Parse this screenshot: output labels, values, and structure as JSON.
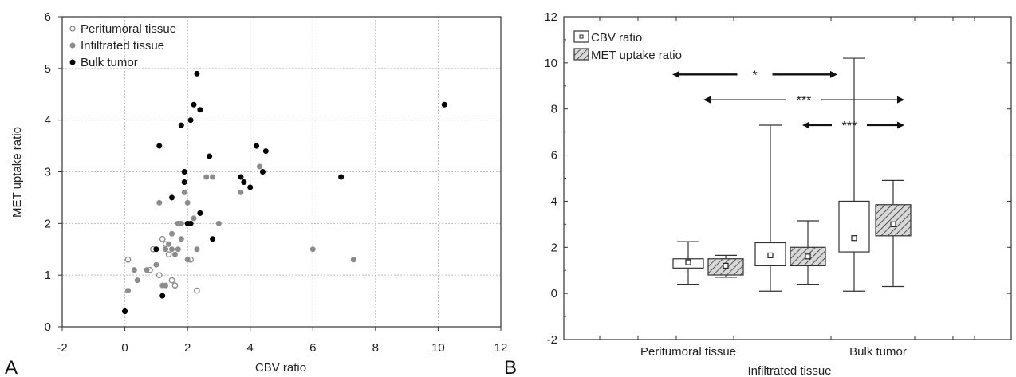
{
  "panels": {
    "left_letter": "A",
    "right_letter": "B"
  },
  "chart_data": [
    {
      "type": "scatter",
      "title": "",
      "xlabel": "CBV ratio",
      "ylabel": "MET uptake ratio",
      "xlim": [
        -2,
        12
      ],
      "ylim": [
        0,
        6
      ],
      "xticks": [
        "-2",
        "0",
        "2",
        "4",
        "6",
        "8",
        "10",
        "12"
      ],
      "yticks": [
        "0",
        "1",
        "2",
        "3",
        "4",
        "5",
        "6"
      ],
      "grid": true,
      "legend_position": "top-left",
      "series": [
        {
          "name": "Peritumoral tissue",
          "marker": "open-circle",
          "color": "#8a8a8a",
          "points": [
            [
              0.1,
              1.3
            ],
            [
              0.8,
              1.1
            ],
            [
              1.1,
              1.0
            ],
            [
              1.3,
              1.6
            ],
            [
              1.4,
              1.4
            ],
            [
              1.5,
              0.9
            ],
            [
              1.6,
              0.8
            ],
            [
              2.1,
              1.3
            ],
            [
              2.3,
              0.7
            ],
            [
              0.9,
              1.5
            ],
            [
              1.2,
              1.7
            ]
          ]
        },
        {
          "name": "Infiltrated tissue",
          "marker": "filled-circle",
          "color": "#8c8c8c",
          "points": [
            [
              0.1,
              0.7
            ],
            [
              0.3,
              1.1
            ],
            [
              0.4,
              0.9
            ],
            [
              0.7,
              1.1
            ],
            [
              1.0,
              1.2
            ],
            [
              1.1,
              2.4
            ],
            [
              1.2,
              0.8
            ],
            [
              1.3,
              0.8
            ],
            [
              1.4,
              1.6
            ],
            [
              1.5,
              1.5
            ],
            [
              1.5,
              1.8
            ],
            [
              1.6,
              1.4
            ],
            [
              1.7,
              1.5
            ],
            [
              1.7,
              2.0
            ],
            [
              1.8,
              2.0
            ],
            [
              1.8,
              1.7
            ],
            [
              2.0,
              1.3
            ],
            [
              2.0,
              2.4
            ],
            [
              2.2,
              2.1
            ],
            [
              2.3,
              1.5
            ],
            [
              2.4,
              2.2
            ],
            [
              2.6,
              2.9
            ],
            [
              2.8,
              2.9
            ],
            [
              3.0,
              2.0
            ],
            [
              3.7,
              2.6
            ],
            [
              4.3,
              3.1
            ],
            [
              6.0,
              1.5
            ],
            [
              7.3,
              1.3
            ],
            [
              1.3,
              1.5
            ],
            [
              1.9,
              2.6
            ]
          ]
        },
        {
          "name": "Bulk tumor",
          "marker": "filled-circle",
          "color": "#000000",
          "points": [
            [
              0.0,
              0.3
            ],
            [
              0.0,
              0.3
            ],
            [
              1.0,
              1.5
            ],
            [
              1.1,
              3.5
            ],
            [
              1.2,
              0.6
            ],
            [
              1.5,
              2.5
            ],
            [
              1.8,
              3.9
            ],
            [
              1.9,
              3.0
            ],
            [
              1.9,
              2.8
            ],
            [
              2.0,
              2.0
            ],
            [
              2.1,
              4.0
            ],
            [
              2.2,
              4.3
            ],
            [
              2.3,
              4.9
            ],
            [
              2.4,
              4.2
            ],
            [
              2.4,
              2.2
            ],
            [
              2.7,
              3.3
            ],
            [
              2.8,
              1.7
            ],
            [
              3.7,
              2.9
            ],
            [
              3.8,
              2.8
            ],
            [
              4.0,
              2.7
            ],
            [
              4.2,
              3.5
            ],
            [
              4.4,
              3.0
            ],
            [
              4.5,
              3.4
            ],
            [
              6.9,
              2.9
            ],
            [
              10.2,
              4.3
            ],
            [
              2.1,
              2.0
            ]
          ]
        }
      ]
    },
    {
      "type": "box",
      "title": "",
      "xlabel": "Infiltrated tissue",
      "ylabel": "",
      "ylim": [
        -2,
        12
      ],
      "yticks": [
        "-2",
        "0",
        "2",
        "4",
        "6",
        "8",
        "10",
        "12"
      ],
      "categories": [
        "Peritumoral tissue",
        "Infiltrated tissue",
        "Bulk tumor"
      ],
      "category_labels_shown": [
        "Peritumoral tissue",
        "Bulk tumor"
      ],
      "legend_position": "top-left",
      "series": [
        {
          "name": "CBV ratio",
          "style": "open",
          "boxes": [
            {
              "min": 0.4,
              "q1": 1.1,
              "median": 1.35,
              "q3": 1.5,
              "max": 2.25
            },
            {
              "min": 0.1,
              "q1": 1.2,
              "median": 1.65,
              "q3": 2.2,
              "max": 7.3
            },
            {
              "min": 0.1,
              "q1": 1.8,
              "median": 2.4,
              "q3": 4.0,
              "max": 10.2
            }
          ]
        },
        {
          "name": "MET uptake ratio",
          "style": "hatched",
          "boxes": [
            {
              "min": 0.7,
              "q1": 0.8,
              "median": 1.2,
              "q3": 1.5,
              "max": 1.65
            },
            {
              "min": 0.4,
              "q1": 1.2,
              "median": 1.6,
              "q3": 2.0,
              "max": 3.15
            },
            {
              "min": 0.3,
              "q1": 2.5,
              "median": 3.0,
              "q3": 3.85,
              "max": 4.9
            }
          ]
        }
      ],
      "significance": [
        {
          "label": "*",
          "from": 0,
          "to": 2,
          "series": "CBV ratio",
          "y": 9.5
        },
        {
          "label": "***",
          "from": 0,
          "to": 2,
          "series": "MET uptake ratio",
          "y": 8.4
        },
        {
          "label": "***",
          "from": 1,
          "to": 2,
          "series": "MET uptake ratio",
          "y": 7.3
        }
      ]
    }
  ]
}
